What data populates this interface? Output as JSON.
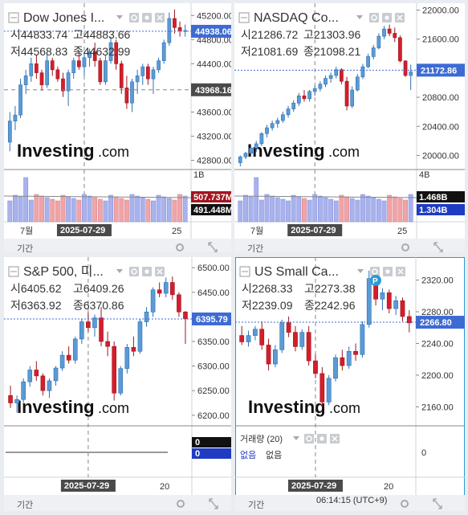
{
  "bottom_bar": {
    "time": "06:14:15",
    "tz": "(UTC+9)"
  },
  "chart_data": [
    {
      "type": "candlestick",
      "title": "Dow Jones I...",
      "ohlc": {
        "o_label": "시",
        "o": "44833.74",
        "h_label": "고",
        "h": "44883.66",
        "l_label": "저",
        "l": "44568.83",
        "c_label": "종",
        "c": "44632.99"
      },
      "price_ticks": [
        "45200.00",
        "44800.00",
        "44400.00",
        "43600.00",
        "43200.00",
        "42800.00"
      ],
      "last_price": "44938.06",
      "crosshair_price": "43968.16",
      "ylim": [
        42700,
        45350
      ],
      "volume_tick": "1B",
      "volume_labels": [
        "507.737M",
        "491.448M"
      ],
      "x_ticks": [
        "7월",
        "25"
      ],
      "crosshair_date": "2025-07-29",
      "period_label": "기간",
      "candles": [
        [
          43100,
          43600,
          42950,
          43450
        ],
        [
          43450,
          43700,
          43300,
          43550
        ],
        [
          43550,
          44150,
          43500,
          44050
        ],
        [
          44050,
          44300,
          43900,
          44200
        ],
        [
          44200,
          44500,
          44100,
          44400
        ],
        [
          44400,
          44550,
          44150,
          44250
        ],
        [
          44250,
          44300,
          43950,
          44050
        ],
        [
          44050,
          44550,
          44000,
          44450
        ],
        [
          44450,
          44500,
          44200,
          44300
        ],
        [
          44300,
          44350,
          44100,
          44150
        ],
        [
          44150,
          44250,
          43850,
          43950
        ],
        [
          43950,
          44300,
          43700,
          44250
        ],
        [
          44250,
          44500,
          44150,
          44450
        ],
        [
          44450,
          44600,
          44300,
          44350
        ],
        [
          44350,
          44600,
          44200,
          44500
        ],
        [
          44500,
          44650,
          44350,
          44600
        ],
        [
          44600,
          44750,
          44350,
          44450
        ],
        [
          44450,
          44500,
          44050,
          44100
        ],
        [
          44100,
          44550,
          44050,
          44450
        ],
        [
          44450,
          44850,
          44400,
          44750
        ],
        [
          44750,
          44800,
          44300,
          44400
        ],
        [
          44400,
          44450,
          43900,
          44000
        ],
        [
          44000,
          44200,
          43650,
          43750
        ],
        [
          43750,
          44150,
          43600,
          44100
        ],
        [
          44100,
          44300,
          43900,
          44200
        ],
        [
          44200,
          44400,
          44050,
          44350
        ],
        [
          44350,
          44400,
          44050,
          44150
        ],
        [
          44150,
          44350,
          43900,
          44300
        ],
        [
          44300,
          44500,
          44250,
          44450
        ],
        [
          44450,
          44800,
          44400,
          44750
        ],
        [
          44750,
          45250,
          44700,
          45150
        ],
        [
          45150,
          45300,
          44900,
          45000
        ],
        [
          45000,
          45100,
          44850,
          44950
        ],
        [
          44950,
          45050,
          44850,
          44950
        ]
      ]
    },
    {
      "type": "candlestick",
      "title": "NASDAQ Co...",
      "ohlc": {
        "o_label": "시",
        "o": "21286.72",
        "h_label": "고",
        "h": "21303.96",
        "l_label": "저",
        "l": "21081.69",
        "c_label": "종",
        "c": "21098.21"
      },
      "price_ticks": [
        "22000.00",
        "21600.00",
        "20800.00",
        "20400.00",
        "20000.00"
      ],
      "last_price": "21172.86",
      "ylim": [
        19850,
        22050
      ],
      "volume_tick": "4B",
      "volume_labels": [
        "1.468B",
        "1.304B"
      ],
      "x_ticks": [
        "7월",
        "25"
      ],
      "crosshair_date": "2025-07-29",
      "period_label": "기간",
      "candles": [
        [
          19900,
          20000,
          19850,
          19980
        ],
        [
          19980,
          20050,
          19950,
          20030
        ],
        [
          20030,
          20120,
          20000,
          20100
        ],
        [
          20100,
          20200,
          20050,
          20160
        ],
        [
          20160,
          20320,
          20130,
          20300
        ],
        [
          20300,
          20420,
          20250,
          20380
        ],
        [
          20380,
          20480,
          20340,
          20440
        ],
        [
          20440,
          20520,
          20380,
          20480
        ],
        [
          20480,
          20600,
          20450,
          20560
        ],
        [
          20560,
          20680,
          20520,
          20640
        ],
        [
          20640,
          20760,
          20600,
          20720
        ],
        [
          20720,
          20860,
          20680,
          20820
        ],
        [
          20820,
          20900,
          20740,
          20780
        ],
        [
          20780,
          20900,
          20740,
          20880
        ],
        [
          20880,
          20960,
          20820,
          20920
        ],
        [
          20920,
          21020,
          20880,
          20980
        ],
        [
          20980,
          21100,
          20940,
          21060
        ],
        [
          21060,
          21140,
          21000,
          21100
        ],
        [
          21100,
          21220,
          21060,
          21180
        ],
        [
          21180,
          21200,
          20980,
          21020
        ],
        [
          21020,
          21080,
          20620,
          20680
        ],
        [
          20680,
          20950,
          20650,
          20900
        ],
        [
          20900,
          21120,
          20880,
          21080
        ],
        [
          21080,
          21260,
          21050,
          21220
        ],
        [
          21220,
          21400,
          21200,
          21360
        ],
        [
          21360,
          21520,
          21320,
          21480
        ],
        [
          21480,
          21680,
          21460,
          21640
        ],
        [
          21640,
          21780,
          21600,
          21740
        ],
        [
          21740,
          21800,
          21640,
          21680
        ],
        [
          21680,
          21760,
          21560,
          21620
        ],
        [
          21620,
          21650,
          21280,
          21300
        ],
        [
          21300,
          21310,
          21080,
          21100
        ],
        [
          21100,
          21250,
          20900,
          21150
        ]
      ]
    },
    {
      "type": "candlestick",
      "title": "S&P 500, 미...",
      "ohlc": {
        "o_label": "시",
        "o": "6405.62",
        "h_label": "고",
        "h": "6409.26",
        "l_label": "저",
        "l": "6363.92",
        "c_label": "종",
        "c": "6370.86"
      },
      "price_ticks": [
        "6500.00",
        "6450.00",
        "6400.00",
        "6350.00",
        "6300.00",
        "6250.00",
        "6200.00"
      ],
      "last_price": "6395.79",
      "ylim": [
        6185,
        6515
      ],
      "volume_labels": [
        "0",
        "0"
      ],
      "x_ticks": [
        "20"
      ],
      "crosshair_date": "2025-07-29",
      "period_label": "기간",
      "candles": [
        [
          6240,
          6260,
          6215,
          6225
        ],
        [
          6225,
          6240,
          6205,
          6232
        ],
        [
          6232,
          6275,
          6225,
          6268
        ],
        [
          6268,
          6300,
          6258,
          6292
        ],
        [
          6292,
          6310,
          6270,
          6280
        ],
        [
          6280,
          6285,
          6240,
          6250
        ],
        [
          6250,
          6275,
          6235,
          6270
        ],
        [
          6270,
          6300,
          6260,
          6296
        ],
        [
          6296,
          6330,
          6290,
          6322
        ],
        [
          6322,
          6340,
          6305,
          6312
        ],
        [
          6312,
          6360,
          6305,
          6355
        ],
        [
          6355,
          6395,
          6345,
          6390
        ],
        [
          6390,
          6410,
          6370,
          6378
        ],
        [
          6378,
          6405,
          6360,
          6398
        ],
        [
          6398,
          6420,
          6340,
          6350
        ],
        [
          6350,
          6370,
          6320,
          6340
        ],
        [
          6340,
          6350,
          6230,
          6245
        ],
        [
          6245,
          6300,
          6240,
          6295
        ],
        [
          6295,
          6345,
          6285,
          6338
        ],
        [
          6338,
          6360,
          6320,
          6330
        ],
        [
          6330,
          6395,
          6325,
          6390
        ],
        [
          6390,
          6420,
          6380,
          6410
        ],
        [
          6410,
          6460,
          6400,
          6455
        ],
        [
          6455,
          6470,
          6440,
          6448
        ],
        [
          6448,
          6480,
          6440,
          6470
        ],
        [
          6470,
          6482,
          6435,
          6445
        ],
        [
          6445,
          6450,
          6400,
          6410
        ],
        [
          6410,
          6412,
          6345,
          6396
        ]
      ]
    },
    {
      "type": "candlestick",
      "title": "US Small Ca...",
      "ohlc": {
        "o_label": "시",
        "o": "2268.33",
        "h_label": "고",
        "h": "2273.38",
        "l_label": "저",
        "l": "2239.09",
        "c_label": "종",
        "c": "2242.96"
      },
      "price_ticks": [
        "2320.00",
        "2280.00",
        "2240.00",
        "2200.00",
        "2160.00"
      ],
      "last_price": "2266.80",
      "ylim": [
        2140,
        2345
      ],
      "badge": "P",
      "volume_title": "거래량 (20)",
      "volume_tick": "0",
      "volume_values": [
        "없음",
        "없음"
      ],
      "x_ticks": [
        "20"
      ],
      "crosshair_date": "2025-07-29",
      "period_label": "기간",
      "candles": [
        [
          2250,
          2262,
          2238,
          2242
        ],
        [
          2242,
          2256,
          2236,
          2250
        ],
        [
          2250,
          2262,
          2244,
          2258
        ],
        [
          2258,
          2268,
          2232,
          2238
        ],
        [
          2238,
          2246,
          2206,
          2214
        ],
        [
          2214,
          2238,
          2210,
          2232
        ],
        [
          2232,
          2270,
          2228,
          2266
        ],
        [
          2266,
          2274,
          2248,
          2254
        ],
        [
          2254,
          2262,
          2230,
          2236
        ],
        [
          2236,
          2258,
          2232,
          2254
        ],
        [
          2254,
          2262,
          2212,
          2218
        ],
        [
          2218,
          2226,
          2196,
          2202
        ],
        [
          2202,
          2210,
          2160,
          2166
        ],
        [
          2166,
          2200,
          2162,
          2196
        ],
        [
          2196,
          2226,
          2192,
          2222
        ],
        [
          2222,
          2232,
          2206,
          2212
        ],
        [
          2212,
          2236,
          2208,
          2230
        ],
        [
          2230,
          2240,
          2218,
          2226
        ],
        [
          2226,
          2268,
          2222,
          2264
        ],
        [
          2264,
          2332,
          2260,
          2322
        ],
        [
          2322,
          2330,
          2288,
          2296
        ],
        [
          2296,
          2310,
          2282,
          2304
        ],
        [
          2304,
          2308,
          2278,
          2284
        ],
        [
          2284,
          2300,
          2276,
          2294
        ],
        [
          2294,
          2298,
          2268,
          2274
        ],
        [
          2274,
          2282,
          2254,
          2266
        ]
      ]
    }
  ]
}
